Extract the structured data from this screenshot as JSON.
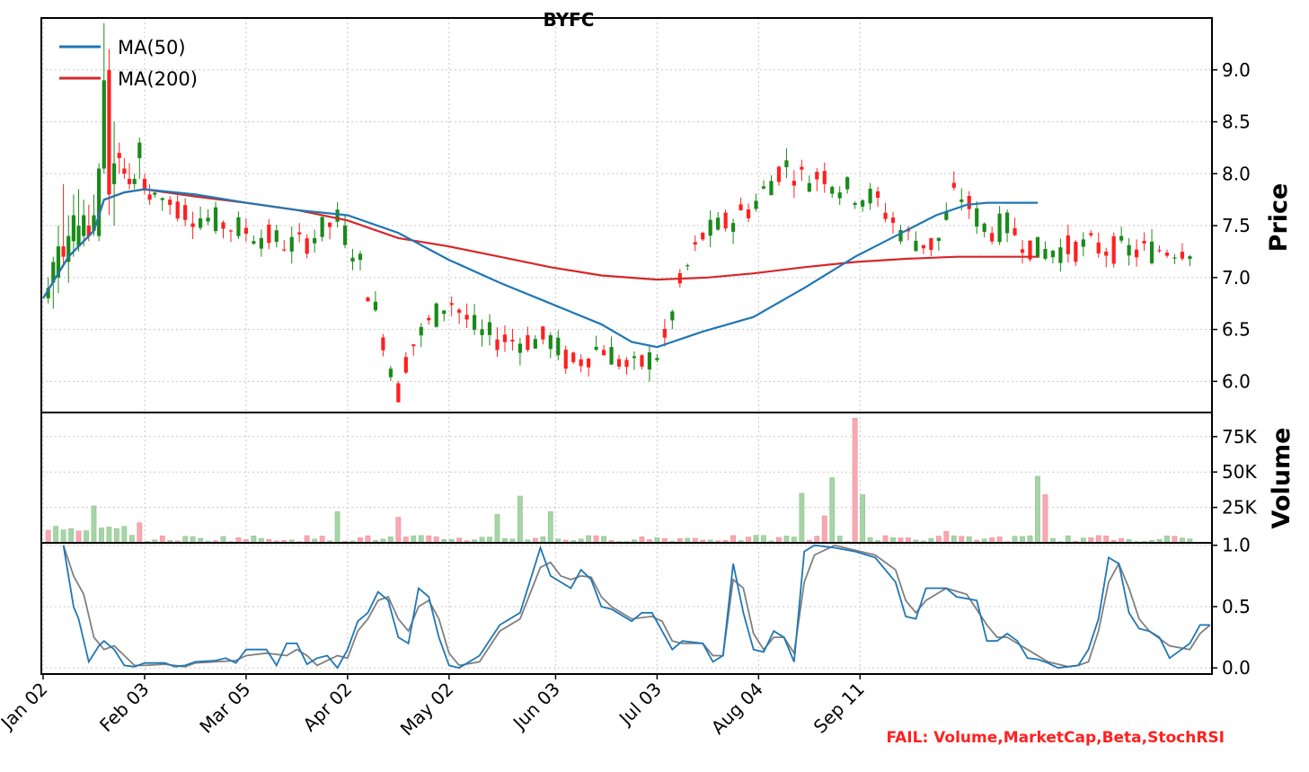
{
  "title": "BYFC",
  "footer_status": "FAIL: Volume,MarketCap,Beta,StochRSI",
  "colors": {
    "up": "#1a8a1a",
    "down": "#ff2020",
    "vol_up": "#a6d4a6",
    "vol_down": "#f7a8b0",
    "ma50": "#1f77b4",
    "ma200": "#d62728",
    "stoch_k": "#1f77b4",
    "stoch_d": "#808080",
    "status": "#ff2020"
  },
  "legend": {
    "ma50": "MA(50)",
    "ma200": "MA(200)"
  },
  "chart_data": {
    "type": "candlestick",
    "title": "BYFC",
    "x_tick_labels": [
      "Jan 02",
      "Feb 03",
      "Mar 05",
      "Apr 02",
      "May 02",
      "Jun 03",
      "Jul 03",
      "Aug 04",
      "Sep 11"
    ],
    "x_tick_index": [
      0,
      20,
      40,
      60,
      80,
      101,
      121,
      141,
      161
    ],
    "price_panel": {
      "ylabel": "Price",
      "ylim": [
        5.7,
        9.5
      ],
      "yticks": [
        6.0,
        6.5,
        7.0,
        7.5,
        8.0,
        8.5,
        9.0
      ],
      "ytick_labels": [
        "6.0",
        "6.5",
        "7.0",
        "7.5",
        "8.0",
        "8.5",
        "9.0"
      ],
      "grid": true,
      "legend_position": "top-left",
      "ohlc": [
        [
          6.8,
          7.0,
          6.75,
          6.9
        ],
        [
          6.95,
          7.2,
          6.7,
          7.15
        ],
        [
          7.0,
          7.5,
          6.85,
          7.3
        ],
        [
          7.3,
          7.9,
          7.1,
          7.2
        ],
        [
          7.15,
          7.6,
          6.95,
          7.4
        ],
        [
          7.35,
          7.8,
          7.2,
          7.6
        ],
        [
          7.3,
          7.85,
          7.25,
          7.5
        ],
        [
          7.4,
          7.75,
          7.3,
          7.6
        ],
        [
          7.5,
          7.7,
          7.35,
          7.4
        ],
        [
          7.45,
          7.8,
          7.4,
          7.6
        ],
        [
          7.4,
          8.1,
          7.35,
          8.05
        ],
        [
          8.05,
          9.45,
          8.0,
          8.9
        ],
        [
          9.0,
          9.2,
          7.6,
          7.8
        ],
        [
          7.9,
          8.5,
          7.5,
          8.1
        ],
        [
          8.2,
          8.3,
          8.0,
          8.15
        ],
        [
          8.05,
          8.15,
          7.95,
          8.0
        ],
        [
          7.95,
          8.1,
          7.85,
          7.9
        ],
        [
          7.9,
          8.0,
          7.85,
          7.95
        ],
        [
          8.15,
          8.35,
          7.95,
          8.3
        ],
        [
          7.95,
          8.0,
          7.8,
          7.85
        ],
        [
          7.8,
          7.9,
          7.7,
          7.75
        ]
      ],
      "ma50": [
        [
          0,
          6.8
        ],
        [
          5,
          7.2
        ],
        [
          10,
          7.45
        ],
        [
          12,
          7.75
        ],
        [
          16,
          7.82
        ],
        [
          20,
          7.85
        ],
        [
          30,
          7.8
        ],
        [
          40,
          7.72
        ],
        [
          50,
          7.65
        ],
        [
          60,
          7.6
        ],
        [
          70,
          7.43
        ],
        [
          80,
          7.17
        ],
        [
          90,
          6.95
        ],
        [
          100,
          6.75
        ],
        [
          110,
          6.55
        ],
        [
          116,
          6.38
        ],
        [
          121,
          6.33
        ],
        [
          130,
          6.48
        ],
        [
          140,
          6.62
        ],
        [
          150,
          6.9
        ],
        [
          160,
          7.2
        ],
        [
          170,
          7.45
        ],
        [
          176,
          7.6
        ],
        [
          182,
          7.7
        ],
        [
          186,
          7.72
        ],
        [
          196,
          7.72
        ]
      ],
      "ma200": [
        [
          0,
          6.8
        ],
        [
          5,
          7.2
        ],
        [
          10,
          7.45
        ],
        [
          12,
          7.75
        ],
        [
          16,
          7.82
        ],
        [
          20,
          7.85
        ],
        [
          30,
          7.78
        ],
        [
          40,
          7.72
        ],
        [
          50,
          7.65
        ],
        [
          60,
          7.55
        ],
        [
          70,
          7.38
        ],
        [
          80,
          7.3
        ],
        [
          90,
          7.2
        ],
        [
          100,
          7.1
        ],
        [
          110,
          7.02
        ],
        [
          121,
          6.98
        ],
        [
          131,
          7.0
        ],
        [
          140,
          7.04
        ],
        [
          150,
          7.1
        ],
        [
          160,
          7.15
        ],
        [
          170,
          7.18
        ],
        [
          180,
          7.2
        ],
        [
          196,
          7.2
        ]
      ]
    },
    "volume_panel": {
      "ylabel": "Volume",
      "yticks": [
        25000,
        50000,
        75000
      ],
      "ytick_labels": [
        "25K",
        "50K",
        "75K"
      ],
      "ylim": [
        0,
        92000
      ]
    },
    "stoch_panel": {
      "ylim": [
        -0.05,
        1.02
      ],
      "yticks": [
        0.0,
        0.5,
        1.0
      ],
      "ytick_labels": [
        "0.0",
        "0.5",
        "1.0"
      ],
      "k": [
        [
          4,
          1.0
        ],
        [
          6,
          0.5
        ],
        [
          7,
          0.4
        ],
        [
          9,
          0.05
        ],
        [
          11,
          0.18
        ],
        [
          12,
          0.22
        ],
        [
          14,
          0.15
        ],
        [
          16,
          0.02
        ],
        [
          18,
          0.01
        ],
        [
          20,
          0.04
        ],
        [
          24,
          0.04
        ],
        [
          26,
          0.01
        ],
        [
          28,
          0.02
        ],
        [
          30,
          0.05
        ],
        [
          34,
          0.06
        ],
        [
          36,
          0.08
        ],
        [
          38,
          0.04
        ],
        [
          40,
          0.15
        ],
        [
          44,
          0.15
        ],
        [
          46,
          0.02
        ],
        [
          48,
          0.2
        ],
        [
          50,
          0.2
        ],
        [
          52,
          0.03
        ],
        [
          54,
          0.08
        ],
        [
          56,
          0.1
        ],
        [
          58,
          0.0
        ],
        [
          60,
          0.15
        ],
        [
          62,
          0.38
        ],
        [
          64,
          0.45
        ],
        [
          66,
          0.62
        ],
        [
          68,
          0.55
        ],
        [
          70,
          0.25
        ],
        [
          72,
          0.2
        ],
        [
          74,
          0.65
        ],
        [
          76,
          0.58
        ],
        [
          78,
          0.25
        ],
        [
          80,
          0.02
        ],
        [
          82,
          0.0
        ],
        [
          86,
          0.1
        ],
        [
          90,
          0.35
        ],
        [
          94,
          0.45
        ],
        [
          98,
          0.98
        ],
        [
          100,
          0.75
        ],
        [
          104,
          0.65
        ],
        [
          106,
          0.8
        ],
        [
          108,
          0.72
        ],
        [
          110,
          0.5
        ],
        [
          112,
          0.48
        ],
        [
          116,
          0.38
        ],
        [
          118,
          0.45
        ],
        [
          120,
          0.45
        ],
        [
          122,
          0.3
        ],
        [
          124,
          0.15
        ],
        [
          126,
          0.22
        ],
        [
          130,
          0.2
        ],
        [
          132,
          0.05
        ],
        [
          134,
          0.1
        ],
        [
          136,
          0.85
        ],
        [
          138,
          0.45
        ],
        [
          140,
          0.15
        ],
        [
          142,
          0.13
        ],
        [
          144,
          0.3
        ],
        [
          146,
          0.25
        ],
        [
          148,
          0.05
        ],
        [
          150,
          0.95
        ],
        [
          152,
          1.0
        ],
        [
          156,
          0.98
        ],
        [
          160,
          0.95
        ],
        [
          164,
          0.9
        ],
        [
          168,
          0.7
        ],
        [
          170,
          0.42
        ],
        [
          172,
          0.4
        ],
        [
          174,
          0.65
        ],
        [
          178,
          0.65
        ],
        [
          180,
          0.58
        ],
        [
          184,
          0.55
        ],
        [
          186,
          0.22
        ],
        [
          188,
          0.22
        ],
        [
          190,
          0.28
        ],
        [
          192,
          0.22
        ],
        [
          194,
          0.08
        ],
        [
          196,
          0.07
        ],
        [
          198,
          0.04
        ],
        [
          200,
          0.0
        ],
        [
          204,
          0.02
        ],
        [
          206,
          0.15
        ],
        [
          208,
          0.4
        ],
        [
          210,
          0.9
        ],
        [
          212,
          0.85
        ],
        [
          214,
          0.45
        ],
        [
          216,
          0.32
        ],
        [
          218,
          0.3
        ],
        [
          220,
          0.25
        ],
        [
          222,
          0.08
        ],
        [
          226,
          0.2
        ],
        [
          228,
          0.35
        ],
        [
          230,
          0.35
        ]
      ],
      "d": [
        [
          4,
          1.0
        ],
        [
          6,
          0.75
        ],
        [
          8,
          0.6
        ],
        [
          10,
          0.25
        ],
        [
          12,
          0.15
        ],
        [
          14,
          0.18
        ],
        [
          16,
          0.1
        ],
        [
          18,
          0.02
        ],
        [
          20,
          0.02
        ],
        [
          24,
          0.03
        ],
        [
          28,
          0.01
        ],
        [
          30,
          0.04
        ],
        [
          34,
          0.05
        ],
        [
          38,
          0.06
        ],
        [
          40,
          0.1
        ],
        [
          44,
          0.12
        ],
        [
          48,
          0.1
        ],
        [
          50,
          0.15
        ],
        [
          52,
          0.1
        ],
        [
          54,
          0.02
        ],
        [
          58,
          0.1
        ],
        [
          60,
          0.08
        ],
        [
          62,
          0.3
        ],
        [
          64,
          0.4
        ],
        [
          66,
          0.55
        ],
        [
          68,
          0.58
        ],
        [
          70,
          0.4
        ],
        [
          72,
          0.3
        ],
        [
          74,
          0.5
        ],
        [
          76,
          0.55
        ],
        [
          78,
          0.4
        ],
        [
          80,
          0.12
        ],
        [
          82,
          0.02
        ],
        [
          86,
          0.05
        ],
        [
          90,
          0.3
        ],
        [
          94,
          0.4
        ],
        [
          98,
          0.82
        ],
        [
          100,
          0.86
        ],
        [
          102,
          0.75
        ],
        [
          104,
          0.72
        ],
        [
          106,
          0.75
        ],
        [
          108,
          0.74
        ],
        [
          110,
          0.58
        ],
        [
          112,
          0.5
        ],
        [
          116,
          0.4
        ],
        [
          120,
          0.42
        ],
        [
          122,
          0.38
        ],
        [
          124,
          0.22
        ],
        [
          126,
          0.2
        ],
        [
          130,
          0.2
        ],
        [
          132,
          0.1
        ],
        [
          134,
          0.1
        ],
        [
          136,
          0.72
        ],
        [
          138,
          0.65
        ],
        [
          140,
          0.28
        ],
        [
          142,
          0.15
        ],
        [
          144,
          0.25
        ],
        [
          146,
          0.25
        ],
        [
          148,
          0.12
        ],
        [
          150,
          0.7
        ],
        [
          152,
          0.92
        ],
        [
          156,
          1.0
        ],
        [
          160,
          0.96
        ],
        [
          164,
          0.92
        ],
        [
          168,
          0.8
        ],
        [
          170,
          0.55
        ],
        [
          172,
          0.45
        ],
        [
          174,
          0.55
        ],
        [
          178,
          0.65
        ],
        [
          182,
          0.6
        ],
        [
          186,
          0.35
        ],
        [
          188,
          0.25
        ],
        [
          190,
          0.25
        ],
        [
          194,
          0.15
        ],
        [
          198,
          0.05
        ],
        [
          202,
          0.01
        ],
        [
          204,
          0.02
        ],
        [
          206,
          0.05
        ],
        [
          208,
          0.3
        ],
        [
          210,
          0.7
        ],
        [
          212,
          0.85
        ],
        [
          214,
          0.65
        ],
        [
          216,
          0.4
        ],
        [
          218,
          0.3
        ],
        [
          222,
          0.18
        ],
        [
          226,
          0.15
        ],
        [
          228,
          0.28
        ],
        [
          230,
          0.35
        ]
      ]
    }
  }
}
